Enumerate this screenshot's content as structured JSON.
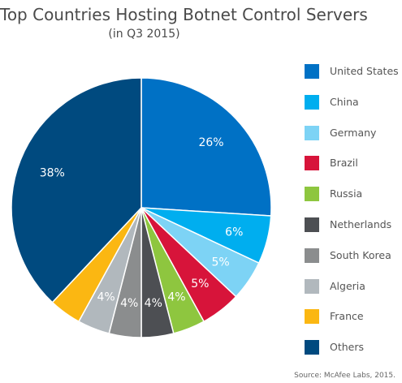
{
  "chart_data": {
    "type": "pie",
    "title": "Top Countries Hosting Botnet Control Servers",
    "subtitle": "(in Q3 2015)",
    "categories": [
      "United States",
      "China",
      "Germany",
      "Brazil",
      "Russia",
      "Netherlands",
      "South Korea",
      "Algeria",
      "France",
      "Others"
    ],
    "values": [
      26,
      6,
      5,
      5,
      4,
      4,
      4,
      4,
      4,
      38
    ],
    "labels": [
      "26%",
      "6%",
      "5%",
      "5%",
      "4%",
      "4%",
      "4%",
      "4%",
      "",
      "38%"
    ],
    "colors": [
      "#0071c5",
      "#00aeef",
      "#7dd3f5",
      "#d7143a",
      "#8ec63f",
      "#4d4f53",
      "#8b8d8e",
      "#b1b8bd",
      "#fbb712",
      "#004a7f"
    ],
    "legend_position": "right"
  },
  "source": "Source: McAfee Labs, 2015."
}
